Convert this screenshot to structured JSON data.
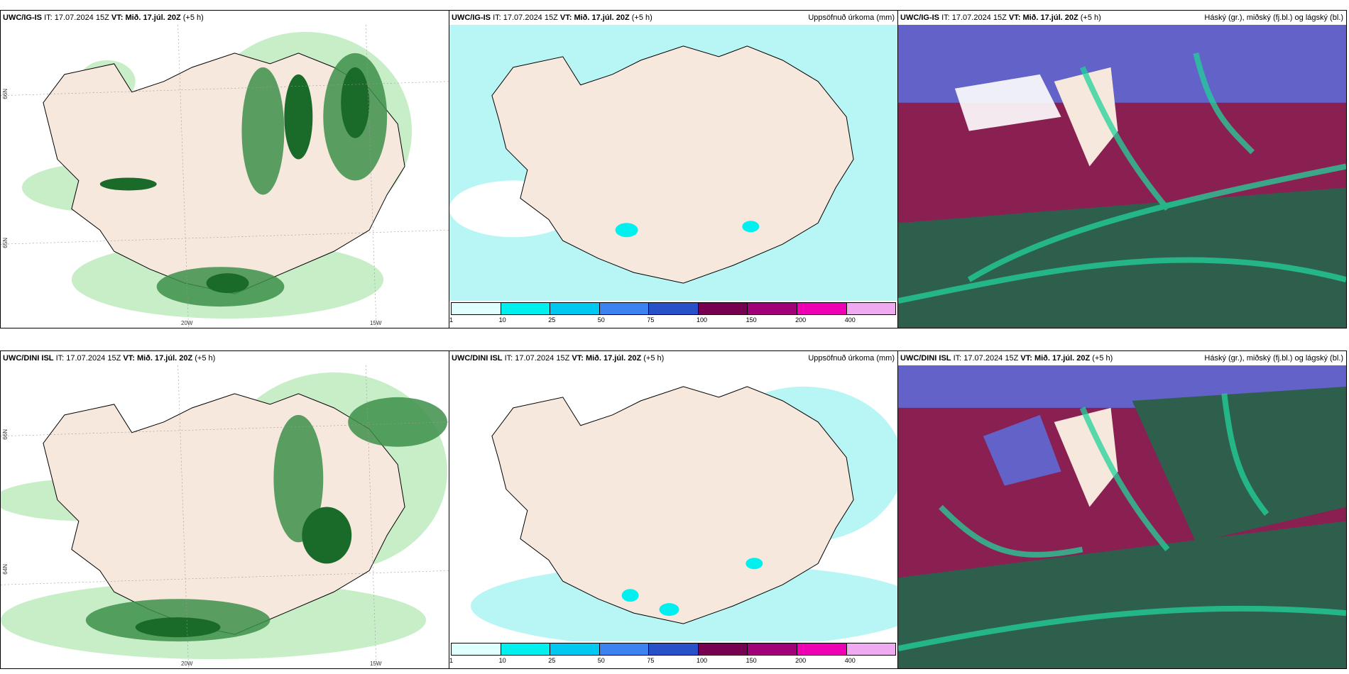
{
  "panels": [
    {
      "id": "p1",
      "model": "UWC/IG-IS",
      "it_label": "IT:",
      "it_value": "17.07.2024 15Z",
      "vt_label": "VT:",
      "vt_value": "Mið. 17.júl. 20Z",
      "lead": "(+5 h)",
      "right": ""
    },
    {
      "id": "p2",
      "model": "UWC/IG-IS",
      "it_label": "IT:",
      "it_value": "17.07.2024 15Z",
      "vt_label": "VT:",
      "vt_value": "Mið. 17.júl. 20Z",
      "lead": "(+5 h)",
      "right": "Uppsöfnuð úrkoma (mm)"
    },
    {
      "id": "p3",
      "model": "UWC/IG-IS",
      "it_label": "IT:",
      "it_value": "17.07.2024 15Z",
      "vt_label": "VT:",
      "vt_value": "Mið. 17.júl. 20Z",
      "lead": "(+5 h)",
      "right": "Háský (gr.), miðský (fj.bl.) og lágský (bl.)"
    },
    {
      "id": "p4",
      "model": "UWC/DINI ISL",
      "it_label": "IT:",
      "it_value": "17.07.2024 15Z",
      "vt_label": "VT:",
      "vt_value": "Mið. 17.júl. 20Z",
      "lead": "(+5 h)",
      "right": ""
    },
    {
      "id": "p5",
      "model": "UWC/DINI ISL",
      "it_label": "IT:",
      "it_value": "17.07.2024 15Z",
      "vt_label": "VT:",
      "vt_value": "Mið. 17.júl. 20Z",
      "lead": "(+5 h)",
      "right": "Uppsöfnuð úrkoma (mm)"
    },
    {
      "id": "p6",
      "model": "UWC/DINI ISL",
      "it_label": "IT:",
      "it_value": "17.07.2024 15Z",
      "vt_label": "VT:",
      "vt_value": "Mið. 17.júl. 20Z",
      "lead": "(+5 h)",
      "right": "Háský (gr.), miðský (fj.bl.) og lágský (bl.)"
    }
  ],
  "colorbar": {
    "ticks": [
      "1",
      "10",
      "25",
      "50",
      "75",
      "100",
      "150",
      "200",
      "400"
    ],
    "colors": [
      "#e0ffff",
      "#00f0f0",
      "#00c8f0",
      "#3c82f0",
      "#2850c8",
      "#780050",
      "#a00078",
      "#f000b4",
      "#f0aaf0"
    ]
  },
  "axes": {
    "lon_20": "20W",
    "lon_15": "15W",
    "lat_66": "66N",
    "lat_64": "64N",
    "lat_65": "65N"
  },
  "colors": {
    "land": "#f6e8dc",
    "precip_light": "#b8f6f6",
    "rain_green_light": "#c8eec8",
    "rain_green_dark": "#1a6a2a",
    "cloud_high": "#6262c8",
    "cloud_mid": "#8a1f52",
    "cloud_low": "#2e5f4d"
  }
}
